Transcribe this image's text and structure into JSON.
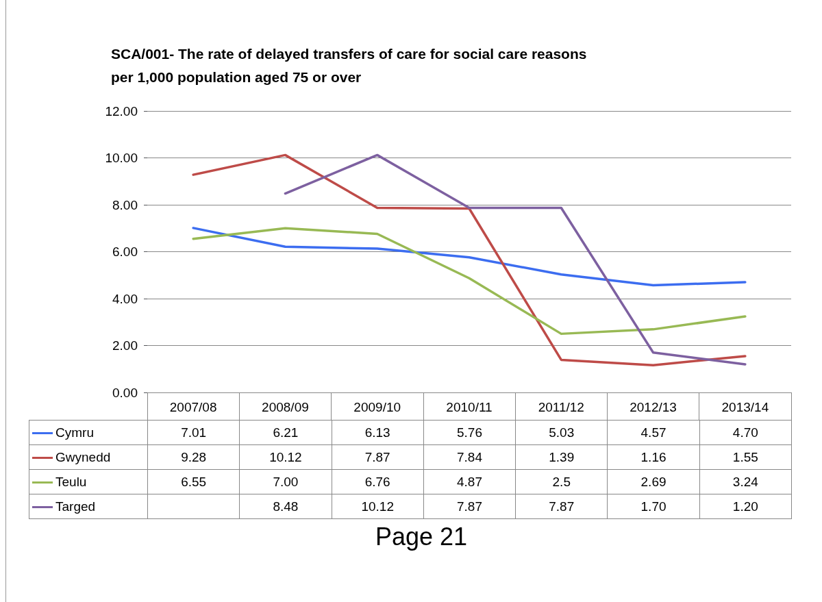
{
  "chart_data": {
    "type": "line",
    "title": "SCA/001- The rate of delayed transfers of care for social care reasons\nper 1,000 population aged 75 or over",
    "categories": [
      "2007/08",
      "2008/09",
      "2009/10",
      "2010/11",
      "2011/12",
      "2012/13",
      "2013/14"
    ],
    "series": [
      {
        "name": "Cymru",
        "color": "#3c6df0",
        "values": [
          7.01,
          6.21,
          6.13,
          5.76,
          5.03,
          4.57,
          4.7
        ],
        "value_labels": [
          "7.01",
          "6.21",
          "6.13",
          "5.76",
          "5.03",
          "4.57",
          "4.70"
        ]
      },
      {
        "name": "Gwynedd",
        "color": "#be4b48",
        "values": [
          9.28,
          10.12,
          7.87,
          7.84,
          1.39,
          1.16,
          1.55
        ],
        "value_labels": [
          "9.28",
          "10.12",
          "7.87",
          "7.84",
          "1.39",
          "1.16",
          "1.55"
        ]
      },
      {
        "name": "Teulu",
        "color": "#98b954",
        "values": [
          6.55,
          7.0,
          6.76,
          4.87,
          2.5,
          2.69,
          3.24
        ],
        "value_labels": [
          "6.55",
          "7.00",
          "6.76",
          "4.87",
          "2.5",
          "2.69",
          "3.24"
        ]
      },
      {
        "name": "Targed",
        "color": "#7d60a0",
        "values": [
          null,
          8.48,
          10.12,
          7.87,
          7.87,
          1.7,
          1.2
        ],
        "value_labels": [
          null,
          "8.48",
          "10.12",
          "7.87",
          "7.87",
          "1.70",
          "1.20"
        ]
      }
    ],
    "ylim": [
      0,
      12
    ],
    "yticks": [
      {
        "value": 0,
        "label": "0.00"
      },
      {
        "value": 2,
        "label": "2.00"
      },
      {
        "value": 4,
        "label": "4.00"
      },
      {
        "value": 6,
        "label": "6.00"
      },
      {
        "value": 8,
        "label": "8.00"
      },
      {
        "value": 10,
        "label": "10.00"
      },
      {
        "value": 12,
        "label": "12.00"
      }
    ],
    "grid": "y",
    "legend": "bottom left",
    "marker": "none",
    "line_style": "solid",
    "annotations": [
      "Page 21"
    ]
  }
}
